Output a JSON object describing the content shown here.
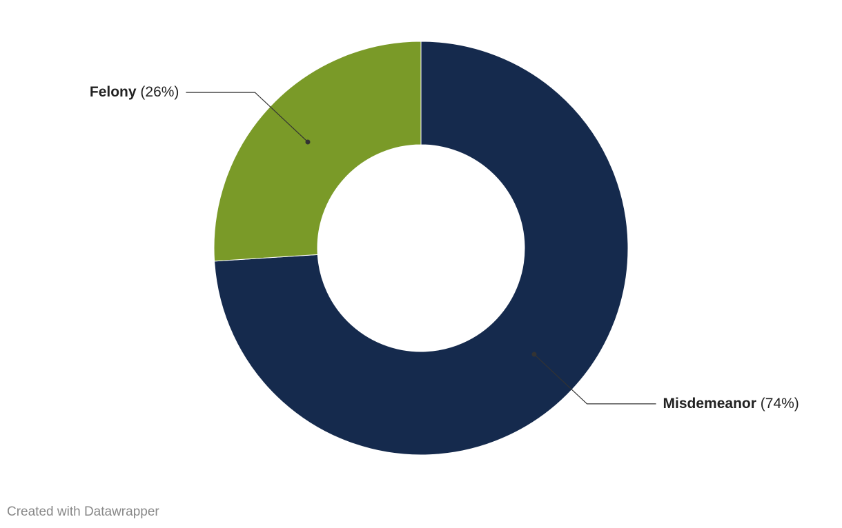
{
  "chart_data": {
    "type": "donut",
    "categories": [
      "Misdemeanor",
      "Felony"
    ],
    "values": [
      74,
      26
    ],
    "value_labels": [
      "(74%)",
      "(26%)"
    ],
    "colors": [
      "#152a4d",
      "#7a9a28"
    ],
    "credit": "Created with Datawrapper"
  }
}
